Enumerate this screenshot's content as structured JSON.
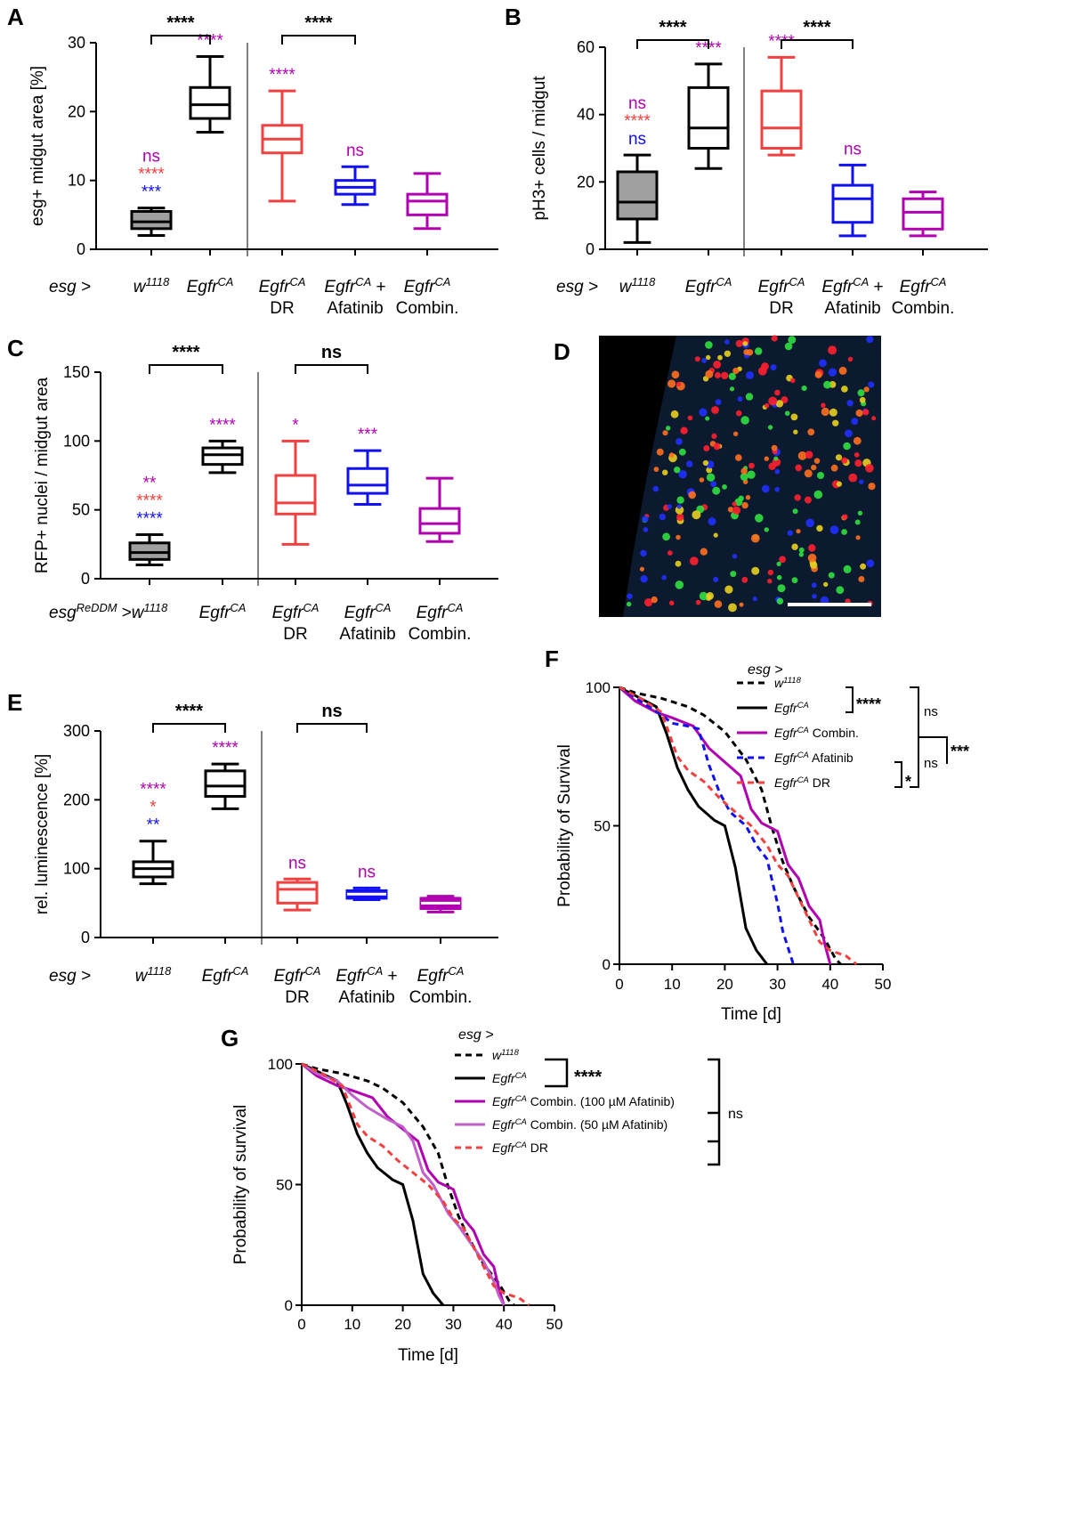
{
  "colors": {
    "black": "#000000",
    "red": "#f04040",
    "blue": "#1010f0",
    "magenta": "#b000b0",
    "lightmagenta": "#c060c8",
    "gray": "#a0a0a0"
  },
  "chart_data": [
    {
      "id": "A",
      "type": "box",
      "panel_label": "A",
      "ylabel": "esg+ midgut area [%]",
      "ylim": [
        0,
        30
      ],
      "yticks": [
        "0",
        "10",
        "20",
        "30"
      ],
      "axis_prefix": "esg >",
      "groups": [
        {
          "label": "w",
          "sup": "1118",
          "color": "black",
          "fill": "gray",
          "box": {
            "min": 2,
            "q1": 3,
            "median": 4,
            "q3": 5.5,
            "max": 6
          },
          "stars": [
            {
              "text": "ns",
              "color": "magenta"
            },
            {
              "text": "****",
              "color": "red"
            },
            {
              "text": "***",
              "color": "blue"
            }
          ]
        },
        {
          "label": "Egfr",
          "sup": "CA",
          "color": "black",
          "fill": "none",
          "box": {
            "min": 17,
            "q1": 19,
            "median": 21,
            "q3": 23.5,
            "max": 28
          },
          "stars": [
            {
              "text": "****",
              "color": "magenta"
            }
          ]
        },
        {
          "label": "Egfr",
          "sup": "CA",
          "line2": "DR",
          "color": "red",
          "fill": "none",
          "box": {
            "min": 7,
            "q1": 14,
            "median": 16,
            "q3": 18,
            "max": 23
          },
          "stars": [
            {
              "text": "****",
              "color": "magenta"
            }
          ]
        },
        {
          "label": "Egfr",
          "sup": "CA",
          "suffix": " +",
          "line2": "Afatinib",
          "color": "blue",
          "fill": "none",
          "box": {
            "min": 6.5,
            "q1": 8,
            "median": 9,
            "q3": 10,
            "max": 12
          },
          "stars": [
            {
              "text": "ns",
              "color": "magenta"
            }
          ]
        },
        {
          "label": "Egfr",
          "sup": "CA",
          "line2": "Combin.",
          "color": "magenta",
          "fill": "none",
          "box": {
            "min": 3,
            "q1": 5,
            "median": 7,
            "q3": 8,
            "max": 11
          },
          "stars": []
        }
      ],
      "brackets": [
        {
          "from": 0,
          "to": 1,
          "text": "****"
        },
        {
          "from": 2,
          "to": 3,
          "text": "****"
        }
      ]
    },
    {
      "id": "B",
      "type": "box",
      "panel_label": "B",
      "ylabel": "pH3+ cells / midgut",
      "ylim": [
        0,
        60
      ],
      "yticks": [
        "0",
        "20",
        "40",
        "60"
      ],
      "axis_prefix": "esg >",
      "groups": [
        {
          "label": "w",
          "sup": "1118",
          "color": "black",
          "fill": "gray",
          "box": {
            "min": 2,
            "q1": 9,
            "median": 14,
            "q3": 23,
            "max": 28
          },
          "stars": [
            {
              "text": "ns",
              "color": "magenta"
            },
            {
              "text": "****",
              "color": "red"
            },
            {
              "text": "ns",
              "color": "blue"
            }
          ]
        },
        {
          "label": "Egfr",
          "sup": "CA",
          "color": "black",
          "fill": "none",
          "box": {
            "min": 24,
            "q1": 30,
            "median": 36,
            "q3": 48,
            "max": 55
          },
          "stars": [
            {
              "text": "****",
              "color": "magenta"
            }
          ]
        },
        {
          "label": "Egfr",
          "sup": "CA",
          "line2": "DR",
          "color": "red",
          "fill": "none",
          "box": {
            "min": 28,
            "q1": 30,
            "median": 36,
            "q3": 47,
            "max": 57
          },
          "stars": [
            {
              "text": "****",
              "color": "magenta"
            }
          ]
        },
        {
          "label": "Egfr",
          "sup": "CA",
          "suffix": " +",
          "line2": "Afatinib",
          "color": "blue",
          "fill": "none",
          "box": {
            "min": 4,
            "q1": 8,
            "median": 15,
            "q3": 19,
            "max": 25
          },
          "stars": [
            {
              "text": "ns",
              "color": "magenta"
            }
          ]
        },
        {
          "label": "Egfr",
          "sup": "CA",
          "line2": "Combin.",
          "color": "magenta",
          "fill": "none",
          "box": {
            "min": 4,
            "q1": 6,
            "median": 11,
            "q3": 15,
            "max": 17
          },
          "stars": []
        }
      ],
      "brackets": [
        {
          "from": 0,
          "to": 1,
          "text": "****"
        },
        {
          "from": 2,
          "to": 3,
          "text": "****"
        }
      ]
    },
    {
      "id": "C",
      "type": "box",
      "panel_label": "C",
      "ylabel": "RFP+ nuclei / midgut area",
      "ylim": [
        0,
        150
      ],
      "yticks": [
        "0",
        "50",
        "100",
        "150"
      ],
      "axis_prefix": "esg",
      "axis_prefix_sup": "ReDDM",
      "axis_prefix_tail": " >",
      "groups": [
        {
          "label": "w",
          "sup": "1118",
          "color": "black",
          "fill": "gray",
          "box": {
            "min": 10,
            "q1": 14,
            "median": 19,
            "q3": 26,
            "max": 32
          },
          "stars": [
            {
              "text": "**",
              "color": "magenta"
            },
            {
              "text": "****",
              "color": "red"
            },
            {
              "text": "****",
              "color": "blue"
            }
          ]
        },
        {
          "label": "Egfr",
          "sup": "CA",
          "color": "black",
          "fill": "none",
          "box": {
            "min": 77,
            "q1": 83,
            "median": 90,
            "q3": 95,
            "max": 100
          },
          "stars": [
            {
              "text": "****",
              "color": "magenta"
            }
          ]
        },
        {
          "label": "Egfr",
          "sup": "CA",
          "line2": "DR",
          "color": "red",
          "fill": "none",
          "box": {
            "min": 25,
            "q1": 47,
            "median": 55,
            "q3": 75,
            "max": 100
          },
          "stars": [
            {
              "text": "*",
              "color": "magenta"
            }
          ]
        },
        {
          "label": "Egfr",
          "sup": "CA",
          "line2": "Afatinib",
          "color": "blue",
          "fill": "none",
          "box": {
            "min": 54,
            "q1": 62,
            "median": 68,
            "q3": 80,
            "max": 93
          },
          "stars": [
            {
              "text": "***",
              "color": "magenta"
            }
          ]
        },
        {
          "label": "Egfr",
          "sup": "CA",
          "line2": "Combin.",
          "color": "magenta",
          "fill": "none",
          "box": {
            "min": 27,
            "q1": 33,
            "median": 40,
            "q3": 51,
            "max": 73
          },
          "stars": []
        }
      ],
      "brackets": [
        {
          "from": 0,
          "to": 1,
          "text": "****"
        },
        {
          "from": 2,
          "to": 3,
          "text": "ns"
        }
      ]
    },
    {
      "id": "E",
      "type": "box",
      "panel_label": "E",
      "ylabel": "rel. luminescence [%]",
      "ylim": [
        0,
        300
      ],
      "yticks": [
        "0",
        "100",
        "200",
        "300"
      ],
      "axis_prefix": "esg  >",
      "groups": [
        {
          "label": "w",
          "sup": "1118",
          "color": "black",
          "fill": "none",
          "box": {
            "min": 78,
            "q1": 88,
            "median": 100,
            "q3": 110,
            "max": 140
          },
          "stars": [
            {
              "text": "****",
              "color": "magenta"
            },
            {
              "text": "*",
              "color": "red"
            },
            {
              "text": "**",
              "color": "blue"
            }
          ]
        },
        {
          "label": "Egfr",
          "sup": "CA",
          "color": "black",
          "fill": "none",
          "box": {
            "min": 187,
            "q1": 205,
            "median": 220,
            "q3": 242,
            "max": 252
          },
          "stars": [
            {
              "text": "****",
              "color": "magenta"
            }
          ]
        },
        {
          "label": "Egfr",
          "sup": "CA",
          "line2": "DR",
          "color": "red",
          "fill": "none",
          "box": {
            "min": 40,
            "q1": 50,
            "median": 70,
            "q3": 80,
            "max": 85
          },
          "stars": [
            {
              "text": "ns",
              "color": "magenta"
            }
          ]
        },
        {
          "label": "Egfr",
          "sup": "CA",
          "suffix": " +",
          "line2": "Afatinib",
          "color": "blue",
          "fill": "blue",
          "box": {
            "min": 55,
            "q1": 57,
            "median": 63,
            "q3": 68,
            "max": 72
          },
          "stars": [
            {
              "text": "ns",
              "color": "magenta"
            }
          ]
        },
        {
          "label": "Egfr",
          "sup": "CA",
          "line2": "Combin.",
          "color": "magenta",
          "fill": "magenta",
          "box": {
            "min": 37,
            "q1": 42,
            "median": 50,
            "q3": 57,
            "max": 60
          },
          "stars": []
        }
      ],
      "brackets": [
        {
          "from": 0,
          "to": 1,
          "text": "****"
        },
        {
          "from": 2,
          "to": 3,
          "text": "ns"
        }
      ]
    },
    {
      "id": "F",
      "type": "line",
      "panel_label": "F",
      "ylabel": "Probability of Survival",
      "xlabel": "Time [d]",
      "xlim": [
        0,
        50
      ],
      "ylim": [
        0,
        100
      ],
      "xticks": [
        "0",
        "10",
        "20",
        "30",
        "40",
        "50"
      ],
      "yticks": [
        "0",
        "50",
        "100"
      ],
      "legend_title": "esg >",
      "series": [
        {
          "name": "w",
          "sup": "1118",
          "tail": "",
          "color": "black",
          "dash": true,
          "x": [
            0,
            3,
            8,
            13,
            16,
            20,
            24,
            27,
            29,
            31,
            33,
            36,
            39,
            41,
            42
          ],
          "y": [
            100,
            98,
            96,
            93,
            90,
            84,
            74,
            63,
            49,
            37,
            28,
            17,
            9,
            2,
            0
          ]
        },
        {
          "name": "Egfr",
          "sup": "CA",
          "tail": "",
          "color": "black",
          "dash": false,
          "x": [
            0,
            3,
            7,
            9,
            11,
            13,
            15,
            18,
            20,
            22,
            24,
            26,
            28
          ],
          "y": [
            100,
            97,
            93,
            83,
            71,
            63,
            57,
            52,
            50,
            35,
            13,
            5,
            0
          ]
        },
        {
          "name": "Egfr",
          "sup": "CA",
          "tail": " Combin.",
          "color": "magenta",
          "dash": false,
          "x": [
            0,
            3,
            7,
            10,
            14,
            17,
            20,
            23,
            25,
            27,
            30,
            32,
            34,
            36,
            38,
            39,
            40
          ],
          "y": [
            100,
            95,
            91,
            89,
            86,
            78,
            73,
            68,
            56,
            51,
            48,
            36,
            31,
            21,
            16,
            7,
            0
          ]
        },
        {
          "name": "Egfr",
          "sup": "CA",
          "tail": " Afatinib",
          "color": "blue",
          "dash": true,
          "x": [
            0,
            4,
            8,
            10,
            13,
            15,
            17,
            19,
            21,
            24,
            26,
            28,
            30,
            31,
            32,
            33
          ],
          "y": [
            100,
            95,
            90,
            87,
            86,
            85,
            72,
            62,
            55,
            50,
            43,
            38,
            22,
            12,
            6,
            0
          ]
        },
        {
          "name": "Egfr",
          "sup": "CA",
          "tail": " DR",
          "color": "red",
          "dash": true,
          "x": [
            0,
            4,
            8,
            11,
            13,
            16,
            19,
            22,
            25,
            28,
            30,
            32,
            35,
            38,
            40,
            43,
            45
          ],
          "y": [
            100,
            96,
            91,
            75,
            70,
            66,
            60,
            55,
            50,
            43,
            36,
            32,
            20,
            8,
            5,
            3,
            0
          ]
        }
      ],
      "sig": [
        {
          "text": "****"
        },
        {
          "text": "ns"
        },
        {
          "text": "ns"
        },
        {
          "text": "***"
        },
        {
          "text": "*"
        }
      ]
    },
    {
      "id": "G",
      "type": "line",
      "panel_label": "G",
      "ylabel": "Probability of survival",
      "xlabel": "Time [d]",
      "xlim": [
        0,
        50
      ],
      "ylim": [
        0,
        100
      ],
      "xticks": [
        "0",
        "10",
        "20",
        "30",
        "40",
        "50"
      ],
      "yticks": [
        "0",
        "50",
        "100"
      ],
      "legend_title": "esg >",
      "series": [
        {
          "name": "w",
          "sup": "1118",
          "tail": "",
          "color": "black",
          "dash": true,
          "x": [
            0,
            3,
            8,
            13,
            16,
            20,
            24,
            27,
            29,
            31,
            33,
            36,
            39,
            41,
            42
          ],
          "y": [
            100,
            98,
            96,
            93,
            90,
            84,
            74,
            63,
            49,
            37,
            28,
            17,
            9,
            2,
            0
          ]
        },
        {
          "name": "Egfr",
          "sup": "CA",
          "tail": "",
          "color": "black",
          "dash": false,
          "x": [
            0,
            3,
            7,
            9,
            11,
            13,
            15,
            18,
            20,
            22,
            24,
            26,
            28
          ],
          "y": [
            100,
            97,
            93,
            83,
            71,
            63,
            57,
            52,
            50,
            35,
            13,
            5,
            0
          ]
        },
        {
          "name": "Egfr",
          "sup": "CA",
          "tail": " Combin. (100 µM Afatinib)",
          "color": "magenta",
          "dash": false,
          "x": [
            0,
            3,
            7,
            10,
            14,
            17,
            20,
            23,
            25,
            27,
            30,
            32,
            34,
            36,
            38,
            39,
            40
          ],
          "y": [
            100,
            95,
            91,
            89,
            86,
            78,
            73,
            68,
            56,
            51,
            48,
            36,
            31,
            21,
            16,
            7,
            0
          ]
        },
        {
          "name": "Egfr",
          "sup": "CA",
          "tail": " Combin. (50 µM Afatinib)",
          "color": "lightmagenta",
          "dash": false,
          "x": [
            0,
            3,
            7,
            10,
            13,
            17,
            20,
            22,
            24,
            26,
            29,
            31,
            34,
            36,
            38,
            39,
            40
          ],
          "y": [
            100,
            96,
            93,
            87,
            82,
            77,
            74,
            68,
            55,
            50,
            38,
            33,
            24,
            18,
            10,
            4,
            0
          ]
        },
        {
          "name": "Egfr",
          "sup": "CA",
          "tail": " DR",
          "color": "red",
          "dash": true,
          "x": [
            0,
            4,
            8,
            11,
            13,
            16,
            19,
            22,
            25,
            28,
            30,
            32,
            35,
            38,
            40,
            43,
            45
          ],
          "y": [
            100,
            96,
            91,
            75,
            70,
            66,
            60,
            55,
            50,
            43,
            36,
            32,
            20,
            8,
            5,
            3,
            0
          ]
        }
      ],
      "sig": [
        {
          "text": "****"
        },
        {
          "text": "ns"
        }
      ]
    }
  ],
  "panel_d": {
    "label": "D"
  }
}
